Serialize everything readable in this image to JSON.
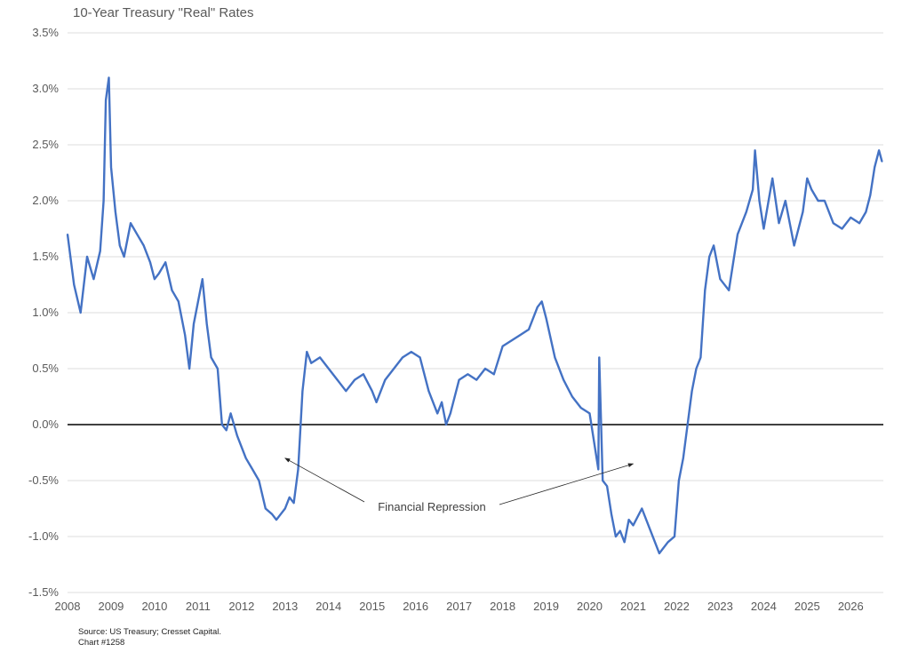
{
  "chart_data": {
    "type": "line",
    "title": "10-Year Treasury \"Real\" Rates",
    "xlabel": "",
    "ylabel": "",
    "x_ticks": [
      "2008",
      "2009",
      "2010",
      "2011",
      "2012",
      "2013",
      "2014",
      "2015",
      "2016",
      "2017",
      "2018",
      "2019",
      "2020",
      "2021",
      "2022",
      "2023",
      "2024",
      "2025",
      "2026"
    ],
    "y_ticks": [
      "3.5%",
      "3.0%",
      "2.5%",
      "2.0%",
      "1.5%",
      "1.0%",
      "0.5%",
      "0.0%",
      "-0.5%",
      "-1.0%",
      "-1.5%"
    ],
    "xlim": [
      2008.0,
      2026.75
    ],
    "ylim": [
      -1.5,
      3.5
    ],
    "grid": "horizontal",
    "zero_line": true,
    "line_color": "#4472C4",
    "series": [
      {
        "x": [
          2008.0,
          2008.15,
          2008.3,
          2008.45,
          2008.6,
          2008.75,
          2008.83,
          2008.88,
          2008.95,
          2009.0,
          2009.1,
          2009.2,
          2009.3,
          2009.45,
          2009.6,
          2009.75,
          2009.9,
          2010.0,
          2010.1,
          2010.25,
          2010.4,
          2010.55,
          2010.7,
          2010.8,
          2010.9,
          2011.0,
          2011.1,
          2011.2,
          2011.3,
          2011.45,
          2011.55,
          2011.65,
          2011.75,
          2011.9,
          2012.0,
          2012.1,
          2012.25,
          2012.4,
          2012.55,
          2012.7,
          2012.8,
          2012.9,
          2013.0,
          2013.1,
          2013.2,
          2013.3,
          2013.4,
          2013.5,
          2013.6,
          2013.8,
          2014.0,
          2014.2,
          2014.4,
          2014.6,
          2014.8,
          2015.0,
          2015.1,
          2015.3,
          2015.5,
          2015.7,
          2015.9,
          2016.1,
          2016.3,
          2016.5,
          2016.6,
          2016.7,
          2016.8,
          2017.0,
          2017.2,
          2017.4,
          2017.6,
          2017.8,
          2018.0,
          2018.2,
          2018.4,
          2018.6,
          2018.8,
          2018.9,
          2019.0,
          2019.2,
          2019.4,
          2019.6,
          2019.8,
          2020.0,
          2020.1,
          2020.2,
          2020.22,
          2020.3,
          2020.4,
          2020.5,
          2020.6,
          2020.7,
          2020.8,
          2020.9,
          2021.0,
          2021.2,
          2021.4,
          2021.6,
          2021.8,
          2021.95,
          2022.05,
          2022.15,
          2022.25,
          2022.35,
          2022.45,
          2022.55,
          2022.65,
          2022.75,
          2022.85,
          2023.0,
          2023.2,
          2023.4,
          2023.6,
          2023.75,
          2023.8,
          2023.9,
          2024.0,
          2024.2,
          2024.35,
          2024.5,
          2024.7,
          2024.9,
          2025.0,
          2025.1,
          2025.25,
          2025.4,
          2025.6,
          2025.8,
          2026.0,
          2026.2,
          2026.35,
          2026.45,
          2026.55,
          2026.65,
          2026.72
        ],
        "values": [
          1.7,
          1.25,
          1.0,
          1.5,
          1.3,
          1.55,
          2.0,
          2.9,
          3.1,
          2.3,
          1.9,
          1.6,
          1.5,
          1.8,
          1.7,
          1.6,
          1.45,
          1.3,
          1.35,
          1.45,
          1.2,
          1.1,
          0.8,
          0.5,
          0.9,
          1.1,
          1.3,
          0.9,
          0.6,
          0.5,
          0.0,
          -0.05,
          0.1,
          -0.1,
          -0.2,
          -0.3,
          -0.4,
          -0.5,
          -0.75,
          -0.8,
          -0.85,
          -0.8,
          -0.75,
          -0.65,
          -0.7,
          -0.4,
          0.3,
          0.65,
          0.55,
          0.6,
          0.5,
          0.4,
          0.3,
          0.4,
          0.45,
          0.3,
          0.2,
          0.4,
          0.5,
          0.6,
          0.65,
          0.6,
          0.3,
          0.1,
          0.2,
          0.0,
          0.1,
          0.4,
          0.45,
          0.4,
          0.5,
          0.45,
          0.7,
          0.75,
          0.8,
          0.85,
          1.05,
          1.1,
          0.95,
          0.6,
          0.4,
          0.25,
          0.15,
          0.1,
          -0.15,
          -0.4,
          0.6,
          -0.5,
          -0.55,
          -0.8,
          -1.0,
          -0.95,
          -1.05,
          -0.85,
          -0.9,
          -0.75,
          -0.95,
          -1.15,
          -1.05,
          -1.0,
          -0.5,
          -0.3,
          0.0,
          0.3,
          0.5,
          0.6,
          1.2,
          1.5,
          1.6,
          1.3,
          1.2,
          1.7,
          1.9,
          2.1,
          2.45,
          2.0,
          1.75,
          2.2,
          1.8,
          2.0,
          1.6,
          1.9,
          2.2,
          2.1,
          2.0,
          2.0,
          1.8,
          1.75,
          1.85,
          1.8,
          1.9,
          2.05,
          2.3,
          2.45,
          2.35
        ]
      }
    ],
    "annotations": [
      {
        "text": "Financial Repression",
        "arrows_to": [
          [
            2013.0,
            -0.3
          ],
          [
            2021.0,
            -0.35
          ]
        ]
      }
    ],
    "source": "Source: US Treasury; Cresset Capital.",
    "chart_number": "Chart #1258"
  }
}
